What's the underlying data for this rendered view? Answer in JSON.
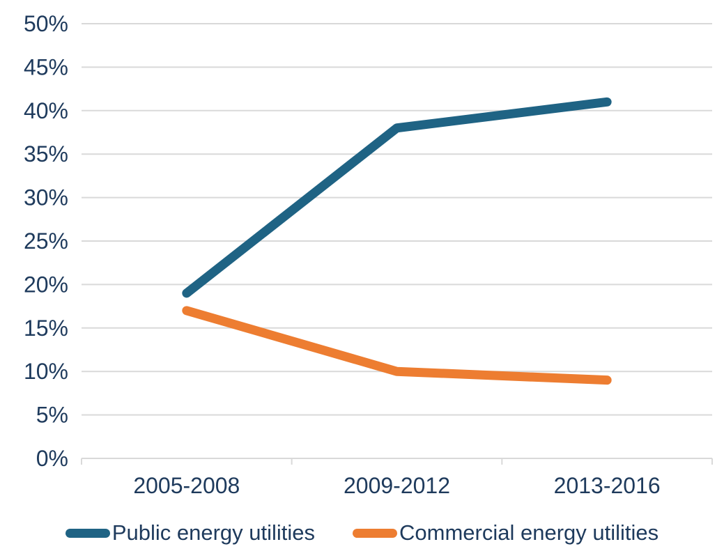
{
  "page": {
    "background": "#ffffff"
  },
  "chart_data": {
    "type": "line",
    "categories": [
      "2005-2008",
      "2009-2012",
      "2013-2016"
    ],
    "series": [
      {
        "name": "Public energy utilities",
        "values": [
          19,
          38,
          41
        ],
        "color": "#1f6384"
      },
      {
        "name": "Commercial energy utilities",
        "values": [
          17,
          10,
          9
        ],
        "color": "#ed7d31"
      }
    ],
    "title": "",
    "xlabel": "",
    "ylabel": "",
    "ylim": [
      0,
      50
    ],
    "ytick_step": 5,
    "ytick_suffix": "%",
    "ytick_labels": [
      "0%",
      "5%",
      "10%",
      "15%",
      "20%",
      "25%",
      "30%",
      "35%",
      "40%",
      "45%",
      "50%"
    ],
    "grid": "horizontal",
    "gridline_color": "#d9d9d9",
    "label_color": "#1e3a5c",
    "line_width": 13,
    "legend_position": "bottom"
  }
}
